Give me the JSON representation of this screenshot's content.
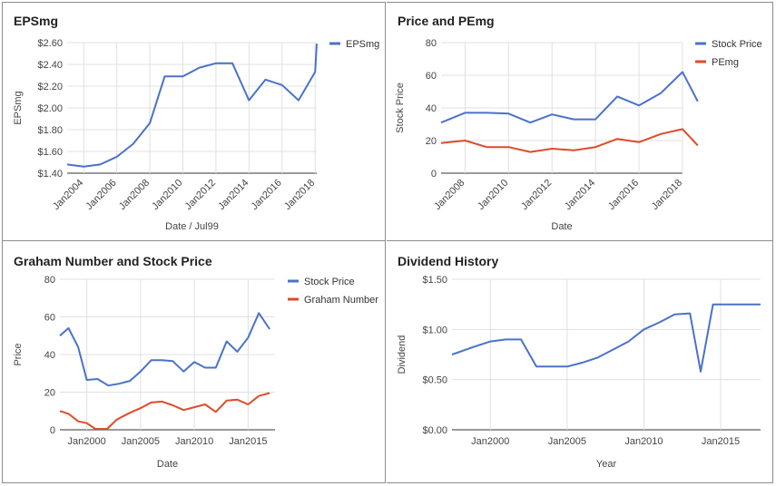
{
  "chart_data": [
    {
      "type": "line",
      "title": "EPSmg",
      "xlabel": "Date / Jul99",
      "ylabel": "EPSmg",
      "x_ticks": [
        "Jan2004",
        "Jan2006",
        "Jan2008",
        "Jan2010",
        "Jan2012",
        "Jan2014",
        "Jan2016",
        "Jan2018"
      ],
      "y_ticks": [
        "$1.40",
        "$1.60",
        "$1.80",
        "$2.00",
        "$2.20",
        "$2.40",
        "$2.60"
      ],
      "ylim": [
        1.4,
        2.6
      ],
      "xlim": [
        2003.0,
        2018.1
      ],
      "grid": true,
      "legend_position": "top-right",
      "series": [
        {
          "name": "EPSmg",
          "color": "#4a72c9",
          "points": [
            [
              2003.0,
              1.48
            ],
            [
              2004.0,
              1.46
            ],
            [
              2005.0,
              1.48
            ],
            [
              2006.0,
              1.55
            ],
            [
              2007.0,
              1.67
            ],
            [
              2008.0,
              1.86
            ],
            [
              2008.9,
              2.29
            ],
            [
              2010.0,
              2.29
            ],
            [
              2011.0,
              2.37
            ],
            [
              2012.0,
              2.41
            ],
            [
              2013.0,
              2.41
            ],
            [
              2014.0,
              2.07
            ],
            [
              2015.0,
              2.26
            ],
            [
              2016.0,
              2.21
            ],
            [
              2017.0,
              2.07
            ],
            [
              2018.0,
              2.33
            ],
            [
              2018.1,
              2.59
            ]
          ]
        }
      ]
    },
    {
      "type": "line",
      "title": "Price and PEmg",
      "xlabel": "Date",
      "ylabel": "Stock Price",
      "x_ticks": [
        "Jan2008",
        "Jan2010",
        "Jan2012",
        "Jan2014",
        "Jan2016",
        "Jan2018"
      ],
      "y_ticks": [
        "0",
        "20",
        "40",
        "60",
        "80"
      ],
      "ylim": [
        0,
        80
      ],
      "xlim": [
        2006.9,
        2018.0
      ],
      "grid": true,
      "legend_position": "top-right",
      "series": [
        {
          "name": "Stock Price",
          "color": "#4a72c9",
          "points": [
            [
              2006.9,
              31
            ],
            [
              2008.0,
              37
            ],
            [
              2009.0,
              37
            ],
            [
              2010.0,
              36.5
            ],
            [
              2011.0,
              31
            ],
            [
              2012.0,
              36
            ],
            [
              2013.0,
              33
            ],
            [
              2014.0,
              33
            ],
            [
              2015.0,
              47
            ],
            [
              2016.0,
              41.5
            ],
            [
              2017.0,
              49
            ],
            [
              2018.0,
              62
            ],
            [
              2018.7,
              44
            ]
          ]
        },
        {
          "name": "PEmg",
          "color": "#dd4b2a",
          "points": [
            [
              2006.9,
              18.5
            ],
            [
              2008.0,
              20
            ],
            [
              2009.0,
              16
            ],
            [
              2010.0,
              16
            ],
            [
              2011.0,
              13
            ],
            [
              2012.0,
              15
            ],
            [
              2013.0,
              14
            ],
            [
              2014.0,
              16
            ],
            [
              2015.0,
              21
            ],
            [
              2016.0,
              19
            ],
            [
              2017.0,
              24
            ],
            [
              2018.0,
              27
            ],
            [
              2018.7,
              17
            ]
          ]
        }
      ]
    },
    {
      "type": "line",
      "title": "Graham Number and Stock Price",
      "xlabel": "Date",
      "ylabel": "Price",
      "x_ticks": [
        "Jan2000",
        "Jan2005",
        "Jan2010",
        "Jan2015"
      ],
      "y_ticks": [
        "0",
        "20",
        "40",
        "60",
        "80"
      ],
      "ylim": [
        0,
        80
      ],
      "xlim": [
        1997.5,
        2017.5
      ],
      "grid": true,
      "legend_position": "top-right",
      "series": [
        {
          "name": "Stock Price",
          "color": "#4a72c9",
          "points": [
            [
              1997.5,
              50
            ],
            [
              1998.3,
              54
            ],
            [
              1999.2,
              44
            ],
            [
              2000.0,
              26.5
            ],
            [
              2001.0,
              27
            ],
            [
              2002.0,
              23.5
            ],
            [
              2003.0,
              24.5
            ],
            [
              2004.0,
              26
            ],
            [
              2005.0,
              31
            ],
            [
              2006.0,
              37
            ],
            [
              2007.0,
              37
            ],
            [
              2008.0,
              36.5
            ],
            [
              2009.0,
              31
            ],
            [
              2010.0,
              36
            ],
            [
              2011.0,
              33
            ],
            [
              2012.0,
              33
            ],
            [
              2013.0,
              47
            ],
            [
              2014.0,
              41.5
            ],
            [
              2015.0,
              49
            ],
            [
              2016.0,
              62
            ],
            [
              2017.0,
              53.5
            ]
          ]
        },
        {
          "name": "Graham Number",
          "color": "#dd4b2a",
          "points": [
            [
              1997.5,
              10
            ],
            [
              1998.3,
              8.5
            ],
            [
              1999.2,
              4.5
            ],
            [
              2000.0,
              3.5
            ],
            [
              2000.8,
              0.5
            ],
            [
              2001.9,
              0.5
            ],
            [
              2002.8,
              5.5
            ],
            [
              2004.0,
              9
            ],
            [
              2005.0,
              11.5
            ],
            [
              2006.0,
              14.5
            ],
            [
              2007.0,
              15
            ],
            [
              2008.0,
              13
            ],
            [
              2009.0,
              10.5
            ],
            [
              2010.0,
              12
            ],
            [
              2011.0,
              13.5
            ],
            [
              2012.0,
              9.5
            ],
            [
              2013.0,
              15.5
            ],
            [
              2014.0,
              16
            ],
            [
              2015.0,
              13.5
            ],
            [
              2016.0,
              18
            ],
            [
              2017.0,
              19.5
            ]
          ]
        }
      ]
    },
    {
      "type": "line",
      "title": "Dividend History",
      "xlabel": "Year",
      "ylabel": "Dividend",
      "x_ticks": [
        "Jan2000",
        "Jan2005",
        "Jan2010",
        "Jan2015"
      ],
      "y_ticks": [
        "$0.00",
        "$0.50",
        "$1.00",
        "$1.50"
      ],
      "ylim": [
        0,
        1.5
      ],
      "xlim": [
        1997.5,
        2017.6
      ],
      "grid": true,
      "legend_position": "none",
      "series": [
        {
          "name": "",
          "color": "#4a72c9",
          "points": [
            [
              1997.5,
              0.75
            ],
            [
              1999.0,
              0.83
            ],
            [
              2000.0,
              0.88
            ],
            [
              2001.0,
              0.9
            ],
            [
              2002.0,
              0.9
            ],
            [
              2003.0,
              0.63
            ],
            [
              2004.0,
              0.63
            ],
            [
              2005.0,
              0.63
            ],
            [
              2006.0,
              0.67
            ],
            [
              2007.0,
              0.72
            ],
            [
              2008.0,
              0.8
            ],
            [
              2009.0,
              0.88
            ],
            [
              2010.0,
              1.0
            ],
            [
              2011.0,
              1.07
            ],
            [
              2012.0,
              1.15
            ],
            [
              2013.0,
              1.16
            ],
            [
              2013.7,
              0.58
            ],
            [
              2014.5,
              1.25
            ],
            [
              2016.0,
              1.25
            ],
            [
              2017.6,
              1.25
            ]
          ]
        }
      ]
    }
  ]
}
